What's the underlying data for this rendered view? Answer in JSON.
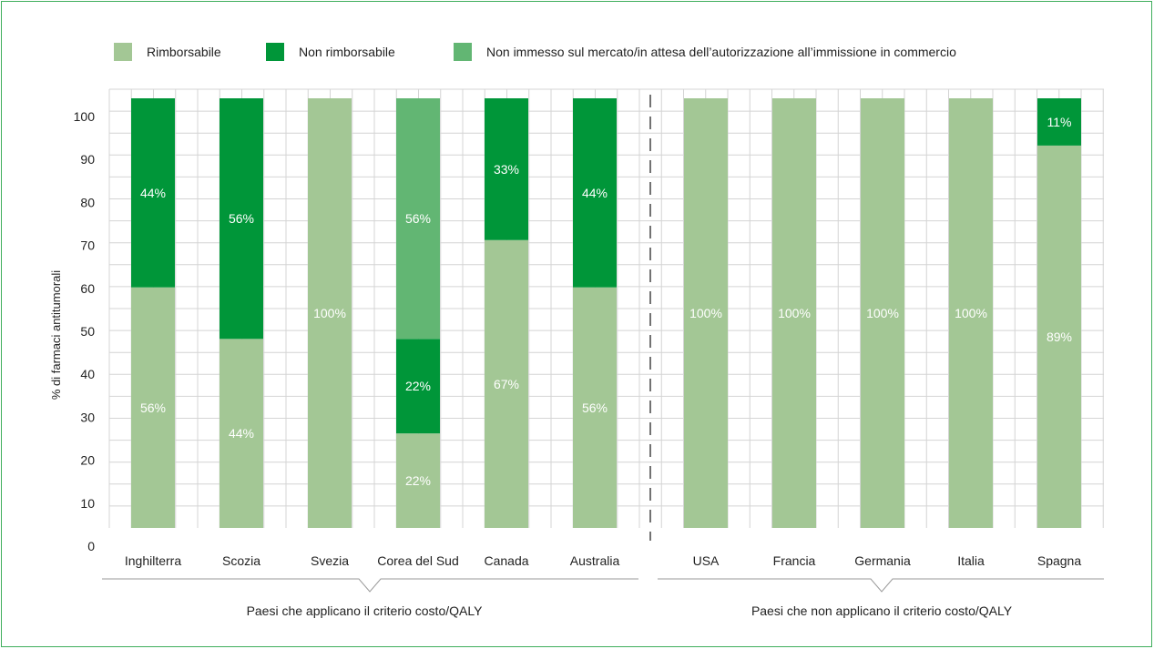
{
  "chart_data": {
    "type": "bar",
    "stacked": true,
    "percent_stacked": true,
    "categories": [
      "Inghilterra",
      "Scozia",
      "Svezia",
      "Corea del Sud",
      "Canada",
      "Australia",
      "USA",
      "Francia",
      "Germania",
      "Italia",
      "Spagna"
    ],
    "series": [
      {
        "name": "Rimborsabile",
        "color": "#a3c795",
        "values": [
          56,
          44,
          100,
          22,
          67,
          56,
          100,
          100,
          100,
          100,
          89
        ],
        "labels": [
          "56%",
          "44%",
          "100%",
          "22%",
          "67%",
          "56%",
          "100%",
          "100%",
          "100%",
          "100%",
          "89%"
        ]
      },
      {
        "name": "Non rimborsabile",
        "color": "#009639",
        "values": [
          44,
          56,
          0,
          22,
          33,
          44,
          0,
          0,
          0,
          0,
          11
        ],
        "labels": [
          "44%",
          "56%",
          "",
          "22%",
          "33%",
          "44%",
          "",
          "",
          "",
          "",
          "11%"
        ]
      },
      {
        "name": "Non immesso sul mercato/in attesa dell’autorizzazione all’immissione in commercio",
        "color": "#62b673",
        "values": [
          0,
          0,
          0,
          56,
          0,
          0,
          0,
          0,
          0,
          0,
          0
        ],
        "labels": [
          "",
          "",
          "",
          "56%",
          "",
          "",
          "",
          "",
          "",
          "",
          ""
        ]
      }
    ],
    "ylabel": "% di farmaci antitumorali",
    "ylim": [
      0,
      100
    ],
    "yticks": [
      0,
      10,
      20,
      30,
      40,
      50,
      60,
      70,
      80,
      90,
      100
    ],
    "grid": true,
    "legend_position": "top",
    "groups": [
      {
        "label": "Paesi che applicano il criterio costo/QALY",
        "start": 0,
        "end": 5
      },
      {
        "label": "Paesi che non applicano il criterio costo/QALY",
        "start": 6,
        "end": 10
      }
    ]
  }
}
